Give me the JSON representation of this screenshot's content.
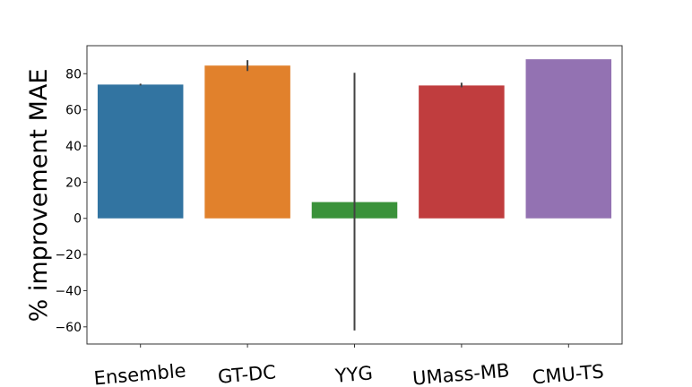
{
  "chart_data": {
    "type": "bar",
    "title": "",
    "xlabel": "",
    "ylabel": "% improvement MAE",
    "categories": [
      "Ensemble",
      "GT-DC",
      "YYG",
      "UMass-MB",
      "CMU-TS"
    ],
    "values": [
      74,
      84.5,
      9,
      73.5,
      88
    ],
    "error_low": [
      73.5,
      81.5,
      -62,
      72.5,
      88
    ],
    "error_high": [
      74.5,
      87.5,
      80.5,
      75,
      88
    ],
    "colors": [
      "#3274a1",
      "#e1812c",
      "#3a923a",
      "#c03d3e",
      "#9372b2"
    ],
    "yticks": [
      -60,
      -40,
      -20,
      0,
      20,
      40,
      60,
      80
    ],
    "ylim": [
      -69.5,
      95.5
    ],
    "grid": false
  }
}
